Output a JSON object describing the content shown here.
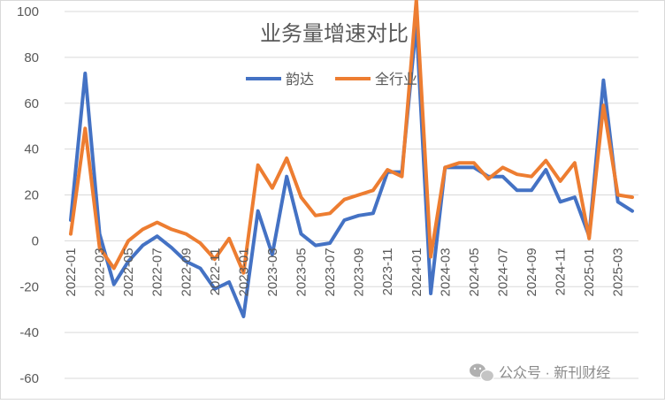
{
  "chart_data": {
    "type": "line",
    "title": "业务量增速对比",
    "xlabel": "",
    "ylabel": "",
    "ylim": [
      -60,
      100
    ],
    "yticks": [
      -60,
      -40,
      -20,
      0,
      20,
      40,
      60,
      80,
      100
    ],
    "grid": "horizontal",
    "legend_position": "top-center",
    "x": [
      "2022-01",
      "2022-02",
      "2022-03",
      "2022-04",
      "2022-05",
      "2022-06",
      "2022-07",
      "2022-08",
      "2022-09",
      "2022-10",
      "2022-11",
      "2022-12",
      "2023-01",
      "2023-02",
      "2023-03",
      "2023-04",
      "2023-05",
      "2023-06",
      "2023-07",
      "2023-08",
      "2023-09",
      "2023-10",
      "2023-11",
      "2023-12",
      "2024-01",
      "2024-02",
      "2024-03",
      "2024-04",
      "2024-05",
      "2024-06",
      "2024-07",
      "2024-08",
      "2024-09",
      "2024-10",
      "2024-11",
      "2024-12",
      "2025-01",
      "2025-02",
      "2025-03",
      "2025-04"
    ],
    "x_tick_labels": [
      "2022-01",
      "2022-03",
      "2022-05",
      "2022-07",
      "2022-09",
      "2022-11",
      "2023-01",
      "2023-03",
      "2023-05",
      "2023-07",
      "2023-09",
      "2023-11",
      "2024-01",
      "2024-03",
      "2024-05",
      "2024-07",
      "2024-09",
      "2024-11",
      "2025-01",
      "2025-03"
    ],
    "series": [
      {
        "name": "韵达",
        "color": "#4472C4",
        "values": [
          9,
          73,
          3,
          -19,
          -9,
          -2,
          2,
          -3,
          -9,
          -12,
          -21,
          -18,
          -33,
          13,
          -6,
          28,
          3,
          -2,
          -1,
          9,
          11,
          12,
          30,
          30,
          95,
          -23,
          32,
          32,
          32,
          28,
          28,
          22,
          22,
          31,
          17,
          19,
          2,
          70,
          17,
          13
        ]
      },
      {
        "name": "全行业",
        "color": "#ED7D31",
        "values": [
          3,
          49,
          -3,
          -12,
          0,
          5,
          8,
          5,
          3,
          -1,
          -8,
          1,
          -14,
          33,
          23,
          36,
          19,
          11,
          12,
          18,
          20,
          22,
          31,
          28,
          105,
          -7,
          32,
          34,
          34,
          27,
          32,
          29,
          28,
          35,
          26,
          34,
          1,
          59,
          20,
          19
        ]
      }
    ]
  },
  "watermark": {
    "icon": "wechat-icon",
    "text": "公众号 · 新刊财经"
  }
}
